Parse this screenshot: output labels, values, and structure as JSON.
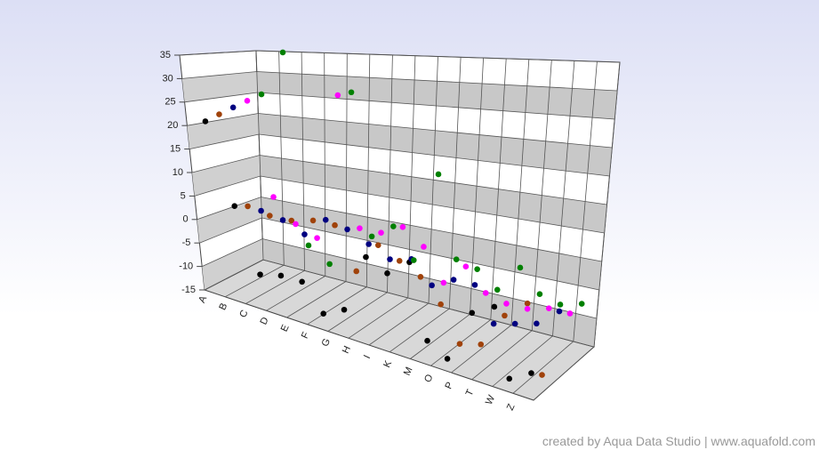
{
  "chart_data": {
    "type": "scatter3d",
    "categories": [
      "A",
      "B",
      "C",
      "D",
      "E",
      "F",
      "G",
      "H",
      "I",
      "K",
      "M",
      "O",
      "P",
      "T",
      "W",
      "Z"
    ],
    "ylim": [
      -15,
      35
    ],
    "yticks": [
      -15,
      -10,
      -5,
      0,
      5,
      10,
      15,
      20,
      25,
      30,
      35
    ],
    "grid": true,
    "series": [
      {
        "color": "#000000",
        "values": [
          21,
          4,
          -9,
          -8,
          -8,
          -13,
          -11,
          0,
          -2,
          1,
          -12,
          -14,
          -5,
          -3,
          -14,
          -12
        ]
      },
      {
        "color": "#a0420a",
        "values": [
          22,
          3,
          2,
          2,
          3,
          3,
          -5,
          1,
          -1,
          -3,
          -7,
          -13,
          -12,
          -6,
          -3,
          -14
        ]
      },
      {
        "color": "#000080",
        "values": [
          23,
          1,
          0,
          -2,
          2,
          1,
          -1,
          -3,
          -2,
          -6,
          -4,
          -4,
          -10,
          -9,
          -8,
          -5
        ]
      },
      {
        "color": "#ff00ff",
        "values": [
          24,
          3,
          -2,
          -4,
          27,
          0,
          0,
          2,
          -1,
          -7,
          -3,
          -7,
          -8,
          -8,
          -7,
          -7
        ]
      },
      {
        "color": "#008000",
        "values": [
          25,
          35,
          -8,
          -11,
          27,
          -3,
          0,
          -6,
          12,
          -4,
          -5,
          -8,
          -3,
          -7,
          -8,
          -7
        ]
      }
    ],
    "credit": "created by Aqua Data Studio | www.aquafold.com"
  }
}
